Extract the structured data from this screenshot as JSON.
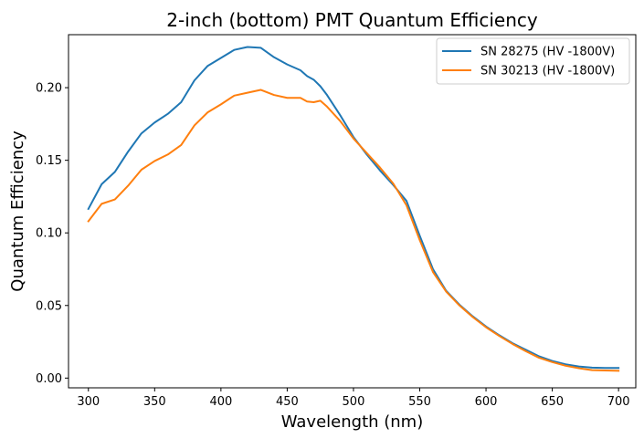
{
  "chart_data": {
    "type": "line",
    "title": "2-inch (bottom) PMT Quantum Efficiency",
    "xlabel": "Wavelength (nm)",
    "ylabel": "Quantum Efficiency",
    "xlim": [
      285,
      713
    ],
    "ylim": [
      -0.0067,
      0.2365
    ],
    "xticks": [
      300,
      350,
      400,
      450,
      500,
      550,
      600,
      650,
      700
    ],
    "xtick_labels": [
      "300",
      "350",
      "400",
      "450",
      "500",
      "550",
      "600",
      "650",
      "700"
    ],
    "yticks": [
      0.0,
      0.05,
      0.1,
      0.15,
      0.2
    ],
    "ytick_labels": [
      "0.00",
      "0.05",
      "0.10",
      "0.15",
      "0.20"
    ],
    "grid": false,
    "legend_position": "top-right",
    "series": [
      {
        "name": "SN 28275 (HV -1800V)",
        "color": "#1f77b4",
        "x": [
          300,
          310,
          320,
          330,
          340,
          350,
          360,
          370,
          380,
          390,
          400,
          410,
          420,
          430,
          440,
          450,
          460,
          465,
          470,
          475,
          480,
          490,
          500,
          510,
          520,
          530,
          540,
          550,
          560,
          570,
          580,
          590,
          600,
          610,
          620,
          630,
          640,
          650,
          660,
          670,
          680,
          690,
          700
        ],
        "y": [
          0.1165,
          0.1335,
          0.142,
          0.156,
          0.1685,
          0.176,
          0.182,
          0.19,
          0.205,
          0.215,
          0.2205,
          0.226,
          0.228,
          0.2275,
          0.221,
          0.216,
          0.212,
          0.208,
          0.2055,
          0.201,
          0.195,
          0.181,
          0.166,
          0.154,
          0.143,
          0.133,
          0.122,
          0.098,
          0.075,
          0.06,
          0.0505,
          0.0425,
          0.0355,
          0.0295,
          0.024,
          0.0195,
          0.015,
          0.0118,
          0.0095,
          0.008,
          0.0072,
          0.007,
          0.007
        ]
      },
      {
        "name": "SN 30213 (HV -1800V)",
        "color": "#ff7f0e",
        "x": [
          300,
          310,
          320,
          330,
          340,
          350,
          360,
          370,
          380,
          390,
          400,
          410,
          420,
          430,
          440,
          450,
          460,
          465,
          470,
          475,
          480,
          490,
          500,
          510,
          520,
          530,
          540,
          550,
          560,
          570,
          580,
          590,
          600,
          610,
          620,
          630,
          640,
          650,
          660,
          670,
          680,
          690,
          700
        ],
        "y": [
          0.108,
          0.12,
          0.123,
          0.1325,
          0.1435,
          0.1495,
          0.154,
          0.1605,
          0.174,
          0.183,
          0.1885,
          0.1945,
          0.1965,
          0.1985,
          0.195,
          0.193,
          0.193,
          0.1905,
          0.19,
          0.191,
          0.187,
          0.177,
          0.165,
          0.155,
          0.145,
          0.134,
          0.119,
          0.095,
          0.073,
          0.0595,
          0.05,
          0.042,
          0.035,
          0.029,
          0.0235,
          0.0185,
          0.014,
          0.011,
          0.0085,
          0.0068,
          0.0055,
          0.0052,
          0.005
        ]
      }
    ]
  }
}
